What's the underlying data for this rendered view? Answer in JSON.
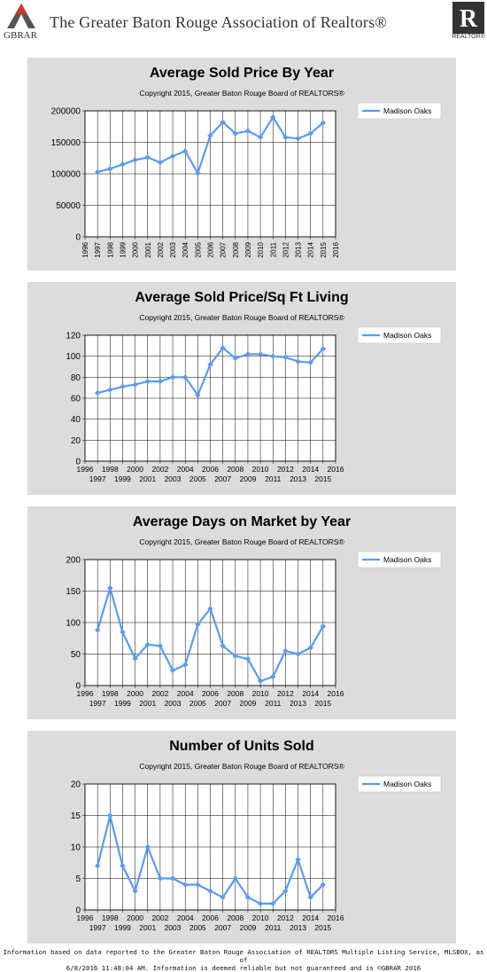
{
  "header": {
    "logo_text": "GBRAR",
    "title": "The Greater Baton Rouge Association of Realtors®",
    "realtor_logo_text": "REALTOR®"
  },
  "colors": {
    "panel_bg": "#dcdcdc",
    "series_line": "#5b9bf0",
    "grid": "#000000"
  },
  "footer": {
    "line1": "Information based on data reported to the Greater Baton Rouge Association of REALTORS Multiple Listing Service, MLSBOX, as of",
    "line2": "6/8/2016 11:48:04 AM. Information is deemed reliable but not guaranteed and is ©GBRAR 2016"
  },
  "chart_data": [
    {
      "type": "line",
      "title": "Average Sold Price By Year",
      "subtitle": "Copyright 2015, Greater Baton Rouge Board of REALTORS®",
      "x_tick_style": "rotated",
      "x": [
        1997,
        1998,
        1999,
        2000,
        2001,
        2002,
        2003,
        2004,
        2005,
        2006,
        2007,
        2008,
        2009,
        2010,
        2011,
        2012,
        2013,
        2014,
        2015
      ],
      "series": [
        {
          "name": "Madison Oaks",
          "values": [
            103000,
            108000,
            115000,
            122000,
            126000,
            118000,
            128000,
            136000,
            101000,
            161000,
            182000,
            164000,
            168000,
            158000,
            190000,
            158000,
            156000,
            164000,
            181000
          ]
        }
      ],
      "xlim": [
        1996,
        2016
      ],
      "ylim": [
        0,
        200000
      ],
      "yticks": [
        0,
        50000,
        100000,
        150000,
        200000
      ],
      "xticks": [
        1996,
        1997,
        1998,
        1999,
        2000,
        2001,
        2002,
        2003,
        2004,
        2005,
        2006,
        2007,
        2008,
        2009,
        2010,
        2011,
        2012,
        2013,
        2014,
        2015,
        2016
      ],
      "grid": true,
      "legend": "top-right"
    },
    {
      "type": "line",
      "title": "Average Sold Price/Sq Ft Living",
      "subtitle": "Copyright 2015, Greater Baton Rouge Board of REALTORS®",
      "x_tick_style": "staggered",
      "x": [
        1997,
        1998,
        1999,
        2000,
        2001,
        2002,
        2003,
        2004,
        2005,
        2006,
        2007,
        2008,
        2009,
        2010,
        2011,
        2012,
        2013,
        2014,
        2015
      ],
      "series": [
        {
          "name": "Madison Oaks",
          "values": [
            65,
            68,
            71,
            73,
            76,
            76,
            80,
            80,
            63,
            92,
            108,
            98,
            102,
            102,
            100,
            99,
            95,
            94,
            107
          ]
        }
      ],
      "xlim": [
        1996,
        2016
      ],
      "ylim": [
        0,
        120
      ],
      "yticks": [
        0,
        20,
        40,
        60,
        80,
        100,
        120
      ],
      "xticks": [
        1996,
        1997,
        1998,
        1999,
        2000,
        2001,
        2002,
        2003,
        2004,
        2005,
        2006,
        2007,
        2008,
        2009,
        2010,
        2011,
        2012,
        2013,
        2014,
        2015,
        2016
      ],
      "grid": true,
      "legend": "top-right"
    },
    {
      "type": "line",
      "title": "Average Days on Market by Year",
      "subtitle": "Copyright 2015, Greater Baton Rouge Board of REALTORS®",
      "x_tick_style": "staggered",
      "x": [
        1997,
        1998,
        1999,
        2000,
        2001,
        2002,
        2003,
        2004,
        2005,
        2006,
        2007,
        2008,
        2009,
        2010,
        2011,
        2012,
        2013,
        2014,
        2015
      ],
      "series": [
        {
          "name": "Madison Oaks",
          "values": [
            88,
            155,
            85,
            43,
            65,
            63,
            24,
            33,
            97,
            122,
            63,
            47,
            42,
            7,
            14,
            55,
            50,
            60,
            94
          ]
        }
      ],
      "xlim": [
        1996,
        2016
      ],
      "ylim": [
        0,
        200
      ],
      "yticks": [
        0,
        50,
        100,
        150,
        200
      ],
      "xticks": [
        1996,
        1997,
        1998,
        1999,
        2000,
        2001,
        2002,
        2003,
        2004,
        2005,
        2006,
        2007,
        2008,
        2009,
        2010,
        2011,
        2012,
        2013,
        2014,
        2015,
        2016
      ],
      "grid": true,
      "legend": "top-right"
    },
    {
      "type": "line",
      "title": "Number of Units Sold",
      "subtitle": "Copyright 2015, Greater Baton Rouge Board of REALTORS®",
      "x_tick_style": "staggered",
      "x": [
        1997,
        1998,
        1999,
        2000,
        2001,
        2002,
        2003,
        2004,
        2005,
        2006,
        2007,
        2008,
        2009,
        2010,
        2011,
        2012,
        2013,
        2014,
        2015
      ],
      "series": [
        {
          "name": "Madison Oaks",
          "values": [
            7,
            15,
            7,
            3,
            10,
            5,
            5,
            4,
            4,
            3,
            2,
            5,
            2,
            1,
            1,
            3,
            8,
            2,
            4
          ]
        }
      ],
      "xlim": [
        1996,
        2016
      ],
      "ylim": [
        0,
        20
      ],
      "yticks": [
        0,
        5,
        10,
        15,
        20
      ],
      "xticks": [
        1996,
        1997,
        1998,
        1999,
        2000,
        2001,
        2002,
        2003,
        2004,
        2005,
        2006,
        2007,
        2008,
        2009,
        2010,
        2011,
        2012,
        2013,
        2014,
        2015,
        2016
      ],
      "grid": true,
      "legend": "top-right"
    }
  ]
}
